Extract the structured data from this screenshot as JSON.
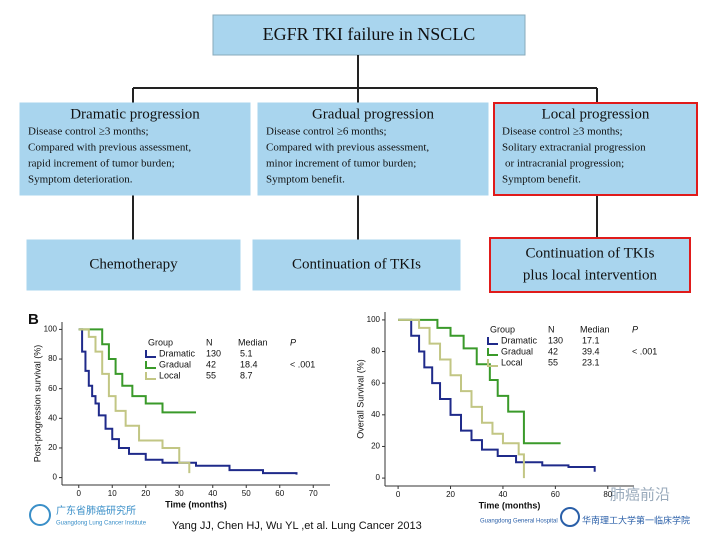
{
  "header": {
    "title": "EGFR TKI failure in NSCLC"
  },
  "branches": [
    {
      "title": "Dramatic progression",
      "lines": [
        "Disease control ≥3 months;",
        "Compared with previous assessment,",
        "rapid increment of tumor burden;",
        "Symptom deterioration."
      ],
      "treatment": [
        "Chemotherapy"
      ]
    },
    {
      "title": "Gradual progression",
      "lines": [
        "Disease control ≥6 months;",
        "Compared with previous assessment,",
        "minor increment of tumor burden;",
        "Symptom benefit."
      ],
      "treatment": [
        "Continuation of TKIs"
      ]
    },
    {
      "title": "Local progression",
      "lines": [
        "Disease control ≥3 months;",
        "Solitary extracranial progression",
        "or intracranial progression;",
        "Symptom benefit."
      ],
      "treatment": [
        "Continuation of TKIs",
        "plus local intervention"
      ]
    }
  ],
  "panel_label": "B",
  "charts": [
    {
      "type": "line",
      "ylabel": "Post-progression survival (%)",
      "xlabel": "Time (months)",
      "xlim": [
        -5,
        75
      ],
      "ylim": [
        -5,
        105
      ],
      "xticks": [
        0,
        10,
        20,
        30,
        40,
        50,
        60,
        70
      ],
      "yticks": [
        0,
        20,
        40,
        60,
        80,
        100
      ],
      "legend": {
        "headers": [
          "Group",
          "N",
          "Median",
          "P"
        ],
        "p_value": "< .001"
      },
      "series": [
        {
          "name": "Dramatic",
          "n": 130,
          "median": 5.1,
          "color": "#1f2a8a",
          "x": [
            0,
            1,
            2,
            3,
            4,
            5,
            6,
            8,
            10,
            12,
            15,
            20,
            25,
            35,
            45,
            55,
            65
          ],
          "values": [
            100,
            85,
            72,
            62,
            55,
            50,
            42,
            33,
            26,
            20,
            16,
            12,
            10,
            8,
            5,
            3,
            2
          ]
        },
        {
          "name": "Gradual",
          "n": 42,
          "median": 18.4,
          "color": "#3a9a2a",
          "x": [
            0,
            5,
            7,
            9,
            11,
            13,
            16,
            20,
            25,
            35
          ],
          "values": [
            100,
            100,
            90,
            80,
            70,
            62,
            55,
            50,
            44,
            44
          ]
        },
        {
          "name": "Local",
          "n": 55,
          "median": 8.7,
          "color": "#c2c684",
          "x": [
            0,
            3,
            5,
            7,
            9,
            11,
            14,
            18,
            25,
            30,
            33
          ],
          "values": [
            100,
            95,
            85,
            70,
            55,
            45,
            35,
            25,
            20,
            10,
            3
          ]
        }
      ]
    },
    {
      "type": "line",
      "ylabel": "Overall Survival (%)",
      "xlabel": "Time (months)",
      "xlim": [
        -5,
        90
      ],
      "ylim": [
        -5,
        105
      ],
      "xticks": [
        0,
        20,
        40,
        60,
        80
      ],
      "yticks": [
        0,
        20,
        40,
        60,
        80,
        100
      ],
      "legend": {
        "headers": [
          "Group",
          "N",
          "Median",
          "P"
        ],
        "p_value": "< .001"
      },
      "series": [
        {
          "name": "Dramatic",
          "n": 130,
          "median": 17.1,
          "color": "#1f2a8a",
          "x": [
            0,
            5,
            8,
            10,
            13,
            16,
            20,
            24,
            28,
            32,
            38,
            45,
            55,
            65,
            75
          ],
          "values": [
            100,
            90,
            80,
            70,
            60,
            50,
            40,
            30,
            24,
            18,
            14,
            10,
            8,
            7,
            4
          ]
        },
        {
          "name": "Gradual",
          "n": 42,
          "median": 39.4,
          "color": "#3a9a2a",
          "x": [
            0,
            10,
            15,
            20,
            25,
            30,
            35,
            38,
            42,
            48,
            62
          ],
          "values": [
            100,
            100,
            95,
            90,
            82,
            72,
            62,
            52,
            42,
            22,
            22
          ]
        },
        {
          "name": "Local",
          "n": 55,
          "median": 23.1,
          "color": "#c2c684",
          "x": [
            0,
            8,
            12,
            16,
            20,
            24,
            28,
            32,
            36,
            40,
            46,
            48
          ],
          "values": [
            100,
            95,
            85,
            75,
            65,
            55,
            45,
            35,
            28,
            22,
            15,
            0
          ]
        }
      ]
    }
  ],
  "citation": "Yang JJ, Chen HJ, Wu YL ,et al. Lung Cancer 2013",
  "logos": {
    "left_cn": "广东省肺癌研究所",
    "left_en": "Guangdong Lung Cancer Institute",
    "watermark": "肺癌前沿",
    "right_en": "Guangdong General Hospital",
    "right_cn": "华南理工大学第一临床学院"
  }
}
